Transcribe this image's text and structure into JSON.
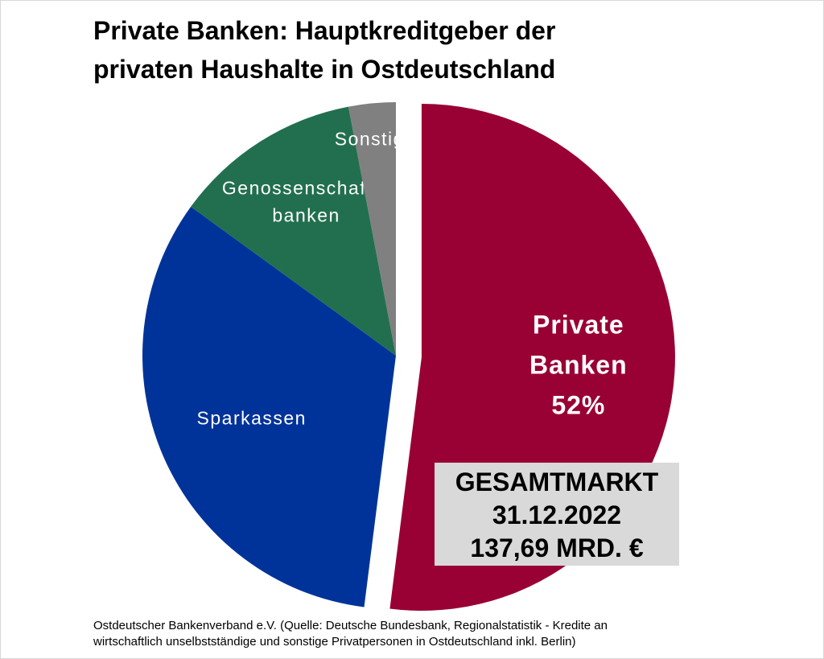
{
  "title": {
    "line1": "Private Banken: Hauptkreditgeber der",
    "line2": "privaten Haushalte in Ostdeutschland"
  },
  "chart_data": {
    "type": "pie",
    "title": "Private Banken: Hauptkreditgeber der privaten Haushalte in Ostdeutschland",
    "slices": [
      {
        "label": [
          "Private",
          "Banken",
          "52%"
        ],
        "value": 52,
        "color": "#990033",
        "exploded": true
      },
      {
        "label": [
          "Sparkassen"
        ],
        "value": 33,
        "color": "#003399",
        "exploded": false
      },
      {
        "label": [
          "Genossenschafts-",
          "banken"
        ],
        "value": 12,
        "color": "#226f4f",
        "exploded": false
      },
      {
        "label": [
          "Sonstige"
        ],
        "value": 3,
        "color": "#808080",
        "exploded": false
      }
    ]
  },
  "market_box": {
    "line1": "GESAMTMARKT",
    "line2": "31.12.2022",
    "line3": "137,69 MRD. €"
  },
  "footer": {
    "line1": "Ostdeutscher Bankenverband e.V. (Quelle: Deutsche Bundesbank, Regionalstatistik - Kredite an",
    "line2": "wirtschaftlich unselbstständige und sonstige Privatpersonen in Ostdeutschland inkl. Berlin)"
  }
}
